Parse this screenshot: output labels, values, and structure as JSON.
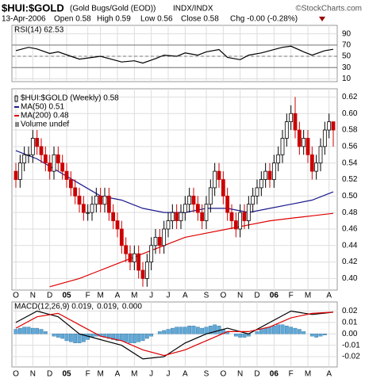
{
  "header": {
    "symbol": "$HUI:$GOLD",
    "name": "(Gold Bugs/Gold (EOD))",
    "exchange": "INDX/INDX",
    "source": "©StockCharts.com",
    "date": "13-Apr-2006",
    "open": "Open 0.58",
    "high": "High 0.59",
    "low": "Low 0.56",
    "close": "Close 0.58",
    "change": "Chg -0.00 (-0.28%)"
  },
  "chart_data": [
    {
      "type": "line",
      "title": "RSI(14) 62.53",
      "ylim": [
        5,
        105
      ],
      "yticks": [
        90,
        70,
        50,
        30,
        10
      ],
      "bands": [
        70,
        30
      ],
      "midline": 50,
      "grid": true,
      "series": [
        {
          "color": "#000000",
          "x": [
            0,
            3,
            5,
            8,
            10,
            13,
            15,
            18,
            20,
            23,
            25,
            28,
            30,
            33,
            35,
            38,
            40,
            43,
            45,
            48,
            50,
            53,
            55,
            58,
            60,
            63,
            65,
            68,
            70,
            73,
            75
          ],
          "values": [
            60,
            66,
            63,
            55,
            58,
            50,
            45,
            48,
            50,
            44,
            40,
            42,
            38,
            46,
            52,
            50,
            56,
            52,
            58,
            62,
            48,
            44,
            52,
            56,
            60,
            66,
            68,
            58,
            52,
            60,
            62.53
          ]
        }
      ]
    },
    {
      "type": "candlestick",
      "title": "$HUI:$GOLD (Weekly) 0.58",
      "volume_label": "Volume undef",
      "categories": [
        "O",
        null,
        null,
        null,
        "N",
        null,
        null,
        null,
        "D",
        null,
        null,
        null,
        "05",
        null,
        null,
        null,
        null,
        "F",
        null,
        null,
        "M",
        null,
        null,
        null,
        "A",
        null,
        null,
        null,
        "M",
        null,
        null,
        null,
        "J",
        null,
        null,
        null,
        "J",
        null,
        null,
        null,
        "A",
        null,
        null,
        null,
        null,
        "S",
        null,
        null,
        null,
        "O",
        null,
        null,
        null,
        "N",
        null,
        null,
        null,
        "D",
        null,
        null,
        null,
        "06",
        null,
        null,
        null,
        "F",
        null,
        null,
        null,
        "M",
        null,
        null,
        null,
        null,
        "A",
        null
      ],
      "open": [
        0.53,
        0.52,
        0.54,
        0.55,
        0.55,
        0.57,
        0.56,
        0.55,
        0.54,
        0.53,
        0.55,
        0.54,
        0.53,
        0.52,
        0.51,
        0.5,
        0.49,
        0.48,
        0.48,
        0.49,
        0.5,
        0.49,
        0.5,
        0.48,
        0.47,
        0.46,
        0.44,
        0.43,
        0.42,
        0.43,
        0.41,
        0.4,
        0.42,
        0.44,
        0.45,
        0.44,
        0.46,
        0.47,
        0.48,
        0.47,
        0.48,
        0.49,
        0.5,
        0.49,
        0.48,
        0.47,
        0.49,
        0.51,
        0.53,
        0.52,
        0.5,
        0.48,
        0.47,
        0.46,
        0.48,
        0.47,
        0.49,
        0.5,
        0.51,
        0.52,
        0.53,
        0.52,
        0.54,
        0.55,
        0.57,
        0.59,
        0.6,
        0.58,
        0.56,
        0.57,
        0.55,
        0.53,
        0.54,
        0.56,
        0.58,
        0.59
      ],
      "high": [
        0.54,
        0.55,
        0.56,
        0.56,
        0.58,
        0.58,
        0.57,
        0.56,
        0.55,
        0.56,
        0.56,
        0.55,
        0.54,
        0.53,
        0.52,
        0.51,
        0.5,
        0.49,
        0.5,
        0.51,
        0.51,
        0.51,
        0.51,
        0.49,
        0.48,
        0.47,
        0.45,
        0.44,
        0.44,
        0.44,
        0.42,
        0.43,
        0.45,
        0.46,
        0.46,
        0.47,
        0.48,
        0.49,
        0.49,
        0.49,
        0.5,
        0.51,
        0.51,
        0.5,
        0.49,
        0.5,
        0.52,
        0.54,
        0.54,
        0.53,
        0.51,
        0.49,
        0.48,
        0.49,
        0.49,
        0.5,
        0.51,
        0.52,
        0.53,
        0.54,
        0.54,
        0.55,
        0.56,
        0.58,
        0.6,
        0.61,
        0.62,
        0.59,
        0.58,
        0.58,
        0.56,
        0.55,
        0.57,
        0.59,
        0.6,
        0.59
      ],
      "low": [
        0.51,
        0.51,
        0.53,
        0.54,
        0.54,
        0.55,
        0.54,
        0.53,
        0.52,
        0.52,
        0.53,
        0.52,
        0.51,
        0.5,
        0.49,
        0.48,
        0.47,
        0.47,
        0.47,
        0.48,
        0.48,
        0.48,
        0.47,
        0.46,
        0.45,
        0.43,
        0.42,
        0.41,
        0.41,
        0.4,
        0.39,
        0.39,
        0.41,
        0.43,
        0.43,
        0.43,
        0.45,
        0.46,
        0.46,
        0.46,
        0.47,
        0.48,
        0.48,
        0.47,
        0.46,
        0.46,
        0.48,
        0.5,
        0.51,
        0.49,
        0.47,
        0.46,
        0.45,
        0.45,
        0.46,
        0.46,
        0.48,
        0.49,
        0.5,
        0.51,
        0.51,
        0.51,
        0.53,
        0.54,
        0.56,
        0.58,
        0.57,
        0.55,
        0.55,
        0.54,
        0.52,
        0.52,
        0.53,
        0.55,
        0.57,
        0.56
      ],
      "close": [
        0.52,
        0.54,
        0.55,
        0.55,
        0.57,
        0.56,
        0.55,
        0.54,
        0.53,
        0.55,
        0.54,
        0.53,
        0.52,
        0.51,
        0.5,
        0.49,
        0.48,
        0.48,
        0.49,
        0.5,
        0.49,
        0.5,
        0.48,
        0.47,
        0.46,
        0.44,
        0.43,
        0.42,
        0.43,
        0.41,
        0.4,
        0.42,
        0.44,
        0.45,
        0.44,
        0.46,
        0.47,
        0.48,
        0.47,
        0.48,
        0.49,
        0.5,
        0.49,
        0.48,
        0.47,
        0.49,
        0.51,
        0.53,
        0.52,
        0.5,
        0.48,
        0.47,
        0.46,
        0.48,
        0.47,
        0.49,
        0.5,
        0.51,
        0.52,
        0.53,
        0.52,
        0.54,
        0.55,
        0.57,
        0.59,
        0.6,
        0.58,
        0.56,
        0.57,
        0.55,
        0.53,
        0.54,
        0.56,
        0.58,
        0.59,
        0.58
      ],
      "up_color": "#000000",
      "down_color": "#cc0000",
      "ylim": [
        0.386,
        0.63
      ],
      "yticks": [
        {
          "value": 0.4,
          "label": "0.40"
        },
        0.42,
        0.44,
        0.46,
        0.48,
        {
          "value": 0.5,
          "label": "0.50"
        },
        0.52,
        0.54,
        0.56,
        0.58,
        {
          "value": 0.6,
          "label": "0.60"
        },
        0.62
      ],
      "grid": true,
      "series": [
        {
          "name": "MA(50) 0.51",
          "color": "#1a1a8c",
          "x": [
            0,
            5,
            10,
            15,
            20,
            25,
            30,
            35,
            40,
            45,
            50,
            55,
            60,
            65,
            70,
            75
          ],
          "values": [
            0.555,
            0.545,
            0.53,
            0.515,
            0.5,
            0.495,
            0.485,
            0.48,
            0.48,
            0.485,
            0.485,
            0.48,
            0.485,
            0.49,
            0.495,
            0.505
          ]
        },
        {
          "name": "MA(200) 0.48",
          "color": "#dd0000",
          "x": [
            8,
            15,
            20,
            25,
            30,
            35,
            40,
            45,
            50,
            55,
            60,
            65,
            70,
            75
          ],
          "values": [
            0.39,
            0.4,
            0.41,
            0.42,
            0.43,
            0.44,
            0.45,
            0.455,
            0.46,
            0.465,
            0.47,
            0.473,
            0.476,
            0.479
          ]
        }
      ]
    },
    {
      "type": "macd",
      "ylim": [
        -0.029,
        0.028
      ],
      "yticks": [
        0.02,
        0.01,
        {
          "value": 0,
          "label": "0.00"
        },
        -0.01,
        -0.02
      ],
      "grid": true,
      "legend": [
        {
          "text": "MACD(12,26,9) 0.019,",
          "color": "#000000"
        },
        {
          "text": "0.019,",
          "color": "#cc0000"
        },
        {
          "text": "0.000",
          "color": "#3399cc"
        }
      ],
      "series": [
        {
          "color": "#000000",
          "x": [
            0,
            5,
            10,
            15,
            20,
            25,
            30,
            35,
            40,
            45,
            50,
            55,
            60,
            65,
            70,
            75
          ],
          "values": [
            0.01,
            0.02,
            0.015,
            0.0,
            -0.005,
            -0.01,
            -0.022,
            -0.02,
            -0.008,
            0.0,
            0.005,
            0.0,
            0.01,
            0.02,
            0.017,
            0.019
          ]
        },
        {
          "color": "#dd0000",
          "x": [
            0,
            5,
            10,
            15,
            20,
            25,
            30,
            35,
            40,
            45,
            50,
            55,
            60,
            65,
            70,
            75
          ],
          "values": [
            0.005,
            0.015,
            0.018,
            0.008,
            -0.002,
            -0.006,
            -0.014,
            -0.019,
            -0.014,
            -0.006,
            0.002,
            0.002,
            0.006,
            0.014,
            0.018,
            0.019
          ]
        }
      ],
      "histogram": {
        "color": "#5fa8d8",
        "values": [
          0.004,
          0.005,
          0.006,
          0.006,
          0.005,
          0.005,
          0.004,
          0.002,
          0.0,
          -0.002,
          -0.003,
          -0.004,
          -0.006,
          -0.007,
          -0.008,
          -0.008,
          -0.007,
          -0.005,
          -0.003,
          -0.002,
          -0.002,
          -0.003,
          -0.004,
          -0.005,
          -0.006,
          -0.006,
          -0.007,
          -0.008,
          -0.008,
          -0.007,
          -0.006,
          -0.004,
          -0.002,
          0.0,
          0.002,
          0.003,
          0.004,
          0.005,
          0.006,
          0.006,
          0.006,
          0.007,
          0.007,
          0.006,
          0.005,
          0.006,
          0.007,
          0.008,
          0.007,
          0.004,
          0.002,
          0.0,
          -0.002,
          -0.003,
          -0.003,
          -0.002,
          0.0,
          0.002,
          0.004,
          0.005,
          0.006,
          0.007,
          0.008,
          0.008,
          0.007,
          0.006,
          0.005,
          0.004,
          0.002,
          0.0,
          -0.002,
          -0.003,
          -0.002,
          -0.001,
          0.0,
          0.0
        ]
      }
    }
  ]
}
